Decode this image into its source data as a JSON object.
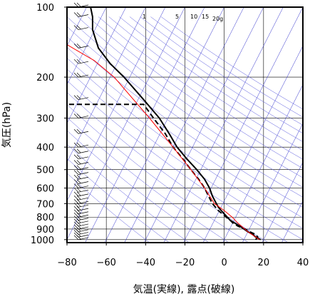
{
  "chart_data": {
    "type": "line",
    "title": "",
    "xlabel": "気温(実線), 露点(破線)",
    "ylabel": "気圧(hPa)",
    "x_ticks": [
      -80,
      -60,
      -40,
      -20,
      0,
      20,
      40
    ],
    "x_tick_labels": [
      "−80",
      "−60",
      "−40",
      "−20",
      "0",
      "20",
      "40"
    ],
    "xlim": [
      -80,
      40
    ],
    "y_scale": "log",
    "y_ticks": [
      100,
      200,
      300,
      400,
      500,
      600,
      700,
      800,
      900,
      1000
    ],
    "y_tick_labels": [
      "100",
      "200",
      "300",
      "400",
      "500",
      "600",
      "700",
      "800",
      "900",
      "1000"
    ],
    "ylim": [
      1030,
      100
    ],
    "grid": true,
    "skew": "temperature isotherms tilted (skew-T)",
    "mixing_ratio_labels": [
      "1",
      "5",
      "10",
      "15",
      "20g"
    ],
    "series": [
      {
        "kind": "temperature",
        "style": "solid",
        "color": "#000000",
        "points": [
          [
            18.5,
            1000
          ],
          [
            16,
            975
          ],
          [
            14.5,
            950
          ],
          [
            12,
            925
          ],
          [
            10,
            900
          ],
          [
            8,
            875
          ],
          [
            5.5,
            850
          ],
          [
            3,
            825
          ],
          [
            1.5,
            800
          ],
          [
            0,
            775
          ],
          [
            -1.5,
            750
          ],
          [
            -3,
            725
          ],
          [
            -4,
            700
          ],
          [
            -6,
            650
          ],
          [
            -7.5,
            600
          ],
          [
            -10,
            550
          ],
          [
            -14,
            500
          ],
          [
            -19,
            450
          ],
          [
            -24,
            400
          ],
          [
            -28,
            350
          ],
          [
            -33,
            300
          ],
          [
            -41,
            250
          ],
          [
            -51,
            200
          ],
          [
            -58,
            175
          ],
          [
            -64,
            150
          ],
          [
            -67,
            125
          ],
          [
            -67,
            110
          ],
          [
            -68,
            100
          ]
        ]
      },
      {
        "kind": "dewpoint",
        "style": "dashed",
        "color": "#000000",
        "points": [
          [
            16,
            1000
          ],
          [
            17,
            975
          ],
          [
            16,
            950
          ],
          [
            13,
            925
          ],
          [
            10.5,
            900
          ],
          [
            7,
            875
          ],
          [
            4.5,
            850
          ],
          [
            3,
            825
          ],
          [
            1,
            800
          ],
          [
            -1,
            775
          ],
          [
            -3,
            750
          ],
          [
            -4.5,
            725
          ],
          [
            -6,
            700
          ],
          [
            -8,
            650
          ],
          [
            -10,
            600
          ],
          [
            -13,
            550
          ],
          [
            -17,
            500
          ],
          [
            -21,
            450
          ],
          [
            -26,
            400
          ],
          [
            -30,
            350
          ],
          [
            -36,
            300
          ],
          [
            -41,
            262
          ],
          [
            -80,
            262
          ]
        ]
      },
      {
        "kind": "parcel",
        "style": "solid",
        "color": "#ff0000",
        "points": [
          [
            18,
            1000
          ],
          [
            12,
            925
          ],
          [
            7,
            850
          ],
          [
            4,
            800
          ],
          [
            0,
            750
          ],
          [
            -5,
            700
          ],
          [
            -10,
            600
          ],
          [
            -17,
            500
          ],
          [
            -26,
            400
          ],
          [
            -38,
            300
          ],
          [
            -56,
            200
          ],
          [
            -66,
            170
          ],
          [
            -80,
            145
          ]
        ]
      }
    ],
    "wind_barbs": [
      {
        "p": 1000,
        "speed": 10
      },
      {
        "p": 975,
        "speed": 10
      },
      {
        "p": 950,
        "speed": 10
      },
      {
        "p": 925,
        "speed": 10
      },
      {
        "p": 900,
        "speed": 10
      },
      {
        "p": 875,
        "speed": 10
      },
      {
        "p": 850,
        "speed": 10
      },
      {
        "p": 825,
        "speed": 10
      },
      {
        "p": 800,
        "speed": 10
      },
      {
        "p": 775,
        "speed": 10
      },
      {
        "p": 750,
        "speed": 10
      },
      {
        "p": 725,
        "speed": 10
      },
      {
        "p": 700,
        "speed": 10
      },
      {
        "p": 675,
        "speed": 10
      },
      {
        "p": 650,
        "speed": 10
      },
      {
        "p": 625,
        "speed": 10
      },
      {
        "p": 600,
        "speed": 10
      },
      {
        "p": 575,
        "speed": 10
      },
      {
        "p": 550,
        "speed": 10
      },
      {
        "p": 525,
        "speed": 10
      },
      {
        "p": 500,
        "speed": 10
      },
      {
        "p": 475,
        "speed": 10
      },
      {
        "p": 450,
        "speed": 10
      },
      {
        "p": 425,
        "speed": 10
      },
      {
        "p": 400,
        "speed": 10
      },
      {
        "p": 350,
        "speed": 10
      },
      {
        "p": 300,
        "speed": 10
      },
      {
        "p": 250,
        "speed": 10
      },
      {
        "p": 200,
        "speed": 10
      },
      {
        "p": 175,
        "speed": 10
      },
      {
        "p": 150,
        "speed": 10
      },
      {
        "p": 125,
        "speed": 10
      },
      {
        "p": 110,
        "speed": 10
      },
      {
        "p": 100,
        "speed": 10
      }
    ],
    "colors": {
      "frame": "#000000",
      "grid": "#000000",
      "isotherm": "#3333cc",
      "adiabat": "#5555dd",
      "parcel": "#ff0000",
      "sounding": "#000000"
    }
  }
}
